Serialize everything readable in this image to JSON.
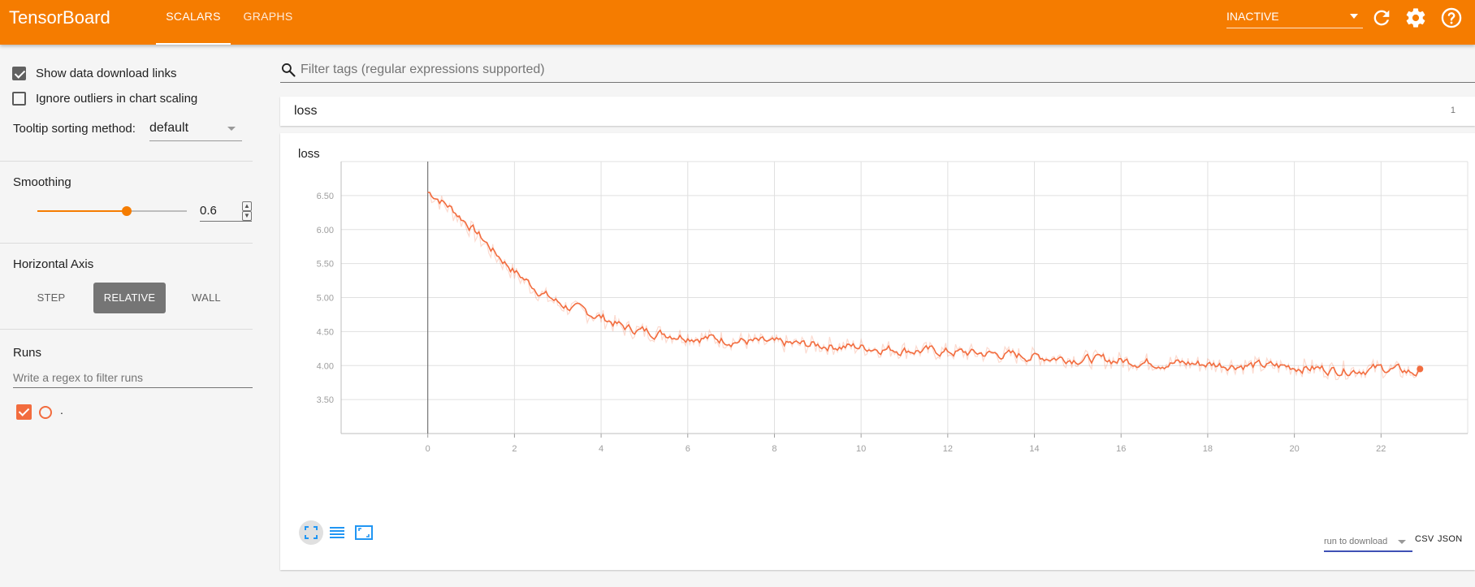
{
  "header": {
    "brand": "TensorBoard",
    "tabs": [
      {
        "label": "SCALARS",
        "active": true
      },
      {
        "label": "GRAPHS",
        "active": false
      }
    ],
    "status_select": "INACTIVE",
    "icons": [
      "refresh-icon",
      "settings-icon",
      "help-icon"
    ]
  },
  "sidebar": {
    "show_download_links": {
      "label": "Show data download links",
      "checked": true
    },
    "ignore_outliers": {
      "label": "Ignore outliers in chart scaling",
      "checked": false
    },
    "tooltip_sort": {
      "label": "Tooltip sorting method:",
      "value": "default"
    },
    "smoothing": {
      "title": "Smoothing",
      "value": "0.6",
      "fraction": 0.6
    },
    "horizontal_axis": {
      "title": "Horizontal Axis",
      "options": [
        {
          "label": "STEP",
          "active": false
        },
        {
          "label": "RELATIVE",
          "active": true
        },
        {
          "label": "WALL",
          "active": false
        }
      ]
    },
    "runs": {
      "title": "Runs",
      "filter_placeholder": "Write a regex to filter runs",
      "items": [
        {
          "name": ".",
          "checked": true,
          "color": "#f26c3e"
        }
      ]
    }
  },
  "main": {
    "filter_placeholder": "Filter tags (regular expressions supported)",
    "category": {
      "name": "loss",
      "count": "1"
    },
    "card": {
      "title": "loss",
      "download_select": "run to download",
      "download_links": [
        "CSV",
        "JSON"
      ]
    }
  },
  "chart_data": {
    "type": "line",
    "title": "loss",
    "xlabel": "",
    "ylabel": "",
    "xlim": [
      -2,
      24
    ],
    "ylim": [
      3.0,
      7.0
    ],
    "x_ticks": [
      0,
      2,
      4,
      6,
      8,
      10,
      12,
      14,
      16,
      18,
      20,
      22
    ],
    "y_ticks": [
      3.5,
      4.0,
      4.5,
      5.0,
      5.5,
      6.0,
      6.5
    ],
    "y_tick_labels": [
      "3.50",
      "4.00",
      "4.50",
      "5.00",
      "5.50",
      "6.00",
      "6.50"
    ],
    "grid": true,
    "series": [
      {
        "color": "#f26c3e",
        "x": [
          0,
          0.5,
          1,
          1.5,
          2,
          2.5,
          3,
          3.5,
          4,
          4.5,
          5,
          6,
          7,
          8,
          9,
          10,
          11,
          12,
          13,
          14,
          15,
          16,
          17,
          18,
          19,
          20,
          21,
          22,
          22.9
        ],
        "values": [
          6.55,
          6.3,
          6.0,
          5.65,
          5.35,
          5.1,
          4.9,
          4.8,
          4.7,
          4.55,
          4.5,
          4.43,
          4.37,
          4.32,
          4.3,
          4.27,
          4.23,
          4.2,
          4.17,
          4.13,
          4.1,
          4.07,
          4.04,
          4.02,
          4.0,
          3.98,
          3.93,
          3.96,
          3.88
        ]
      }
    ]
  }
}
